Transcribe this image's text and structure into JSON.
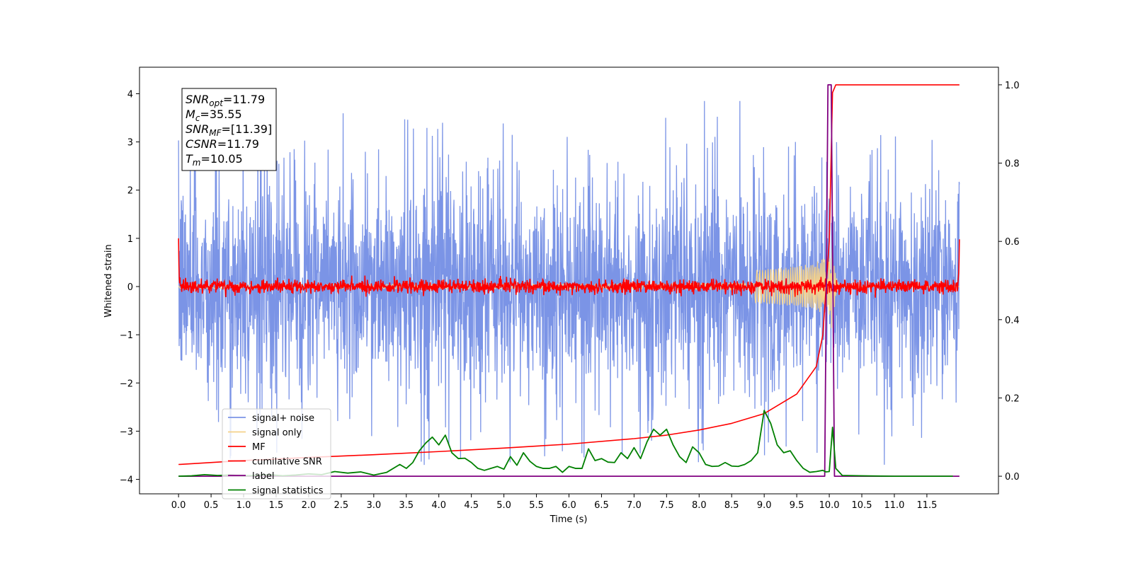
{
  "chart_data": {
    "type": "line",
    "xlabel": "Time (s)",
    "ylabel": "Whitened strain",
    "xlim": [
      -0.6,
      12.6
    ],
    "ylim": [
      -4.3,
      4.55
    ],
    "y2lim": [
      -0.045,
      1.045
    ],
    "x_ticks": [
      "0.0",
      "0.5",
      "1.0",
      "1.5",
      "2.0",
      "2.5",
      "3.0",
      "3.5",
      "4.0",
      "4.5",
      "5.0",
      "5.5",
      "6.0",
      "6.5",
      "7.0",
      "7.5",
      "8.0",
      "8.5",
      "9.0",
      "9.5",
      "10.0",
      "10.5",
      "11.0",
      "11.5"
    ],
    "y_ticks": [
      "4",
      "3",
      "2",
      "1",
      "0",
      "−1",
      "−2",
      "−3",
      "−4"
    ],
    "y2_ticks": [
      "1.0",
      "0.8",
      "0.6",
      "0.4",
      "0.2",
      "0.0"
    ],
    "grid": false,
    "legend": "lower-left",
    "annotation": [
      {
        "sym": "SNR",
        "sub": "opt",
        "val": "=11.79"
      },
      {
        "sym": "M",
        "sub": "c",
        "val": "=35.55"
      },
      {
        "sym": "SNR",
        "sub": "MF",
        "val": "=[11.39]"
      },
      {
        "sym": "CSNR",
        "sub": "",
        "val": "=11.79"
      },
      {
        "sym": "T",
        "sub": "m",
        "val": "=10.05"
      }
    ],
    "series": [
      {
        "name": "signal+ noise",
        "color": "#7b94e6",
        "axis": "left",
        "t_range": [
          0,
          12
        ],
        "noise_std": 1.15,
        "peak_range": [
          -3.7,
          3.85
        ]
      },
      {
        "name": "signal only",
        "color": "#f5d28a",
        "axis": "left",
        "chirp_merger_time": 10.05,
        "peak_amplitude": 1.15
      },
      {
        "name": "MF",
        "color": "#ff0000",
        "axis": "left",
        "t_range": [
          0,
          12
        ],
        "endpoints": [
          1.0,
          0.98
        ],
        "noise_std": 0.07
      },
      {
        "name": "cumilative SNR",
        "color": "#ff0000",
        "axis": "right",
        "x": [
          0,
          1,
          2,
          3,
          4,
          5,
          6,
          7,
          7.5,
          8,
          8.5,
          9,
          9.5,
          9.8,
          9.9,
          10.0,
          10.05,
          10.1,
          12
        ],
        "y": [
          0.03,
          0.04,
          0.048,
          0.055,
          0.063,
          0.072,
          0.082,
          0.096,
          0.105,
          0.118,
          0.135,
          0.16,
          0.21,
          0.28,
          0.36,
          0.6,
          0.98,
          1.0,
          1.0
        ]
      },
      {
        "name": "label",
        "color": "#800080",
        "axis": "right",
        "x": [
          0,
          9.93,
          9.98,
          10.03,
          10.08,
          12
        ],
        "y": [
          0.0,
          0.0,
          1.0,
          1.0,
          0.0,
          0.0
        ]
      },
      {
        "name": "signal statistics",
        "color": "#008000",
        "axis": "right",
        "x": [
          0.0,
          0.2,
          0.4,
          0.6,
          0.8,
          1.0,
          1.2,
          1.4,
          1.6,
          1.8,
          2.0,
          2.2,
          2.4,
          2.6,
          2.8,
          3.0,
          3.2,
          3.4,
          3.5,
          3.6,
          3.7,
          3.8,
          3.9,
          4.0,
          4.1,
          4.2,
          4.3,
          4.4,
          4.5,
          4.6,
          4.7,
          4.8,
          4.9,
          5.0,
          5.1,
          5.2,
          5.3,
          5.4,
          5.5,
          5.6,
          5.7,
          5.8,
          5.9,
          6.0,
          6.1,
          6.2,
          6.3,
          6.4,
          6.5,
          6.6,
          6.7,
          6.8,
          6.9,
          7.0,
          7.1,
          7.2,
          7.3,
          7.4,
          7.5,
          7.6,
          7.7,
          7.8,
          7.9,
          8.0,
          8.1,
          8.2,
          8.3,
          8.4,
          8.5,
          8.6,
          8.7,
          8.8,
          8.9,
          9.0,
          9.1,
          9.2,
          9.3,
          9.4,
          9.5,
          9.6,
          9.7,
          9.8,
          9.9,
          9.95,
          10.0,
          10.05,
          10.1,
          10.2,
          10.5,
          11.0,
          11.5,
          11.9
        ],
        "y": [
          0.0,
          0.001,
          0.004,
          0.002,
          0.003,
          0.001,
          0.002,
          0.004,
          0.001,
          0.003,
          0.006,
          0.004,
          0.012,
          0.008,
          0.011,
          0.003,
          0.01,
          0.03,
          0.02,
          0.035,
          0.065,
          0.085,
          0.1,
          0.08,
          0.105,
          0.06,
          0.045,
          0.046,
          0.035,
          0.02,
          0.015,
          0.02,
          0.025,
          0.018,
          0.05,
          0.028,
          0.06,
          0.038,
          0.025,
          0.02,
          0.02,
          0.025,
          0.01,
          0.025,
          0.02,
          0.02,
          0.07,
          0.04,
          0.045,
          0.036,
          0.035,
          0.06,
          0.045,
          0.073,
          0.045,
          0.088,
          0.12,
          0.105,
          0.12,
          0.08,
          0.05,
          0.035,
          0.075,
          0.06,
          0.03,
          0.025,
          0.026,
          0.035,
          0.026,
          0.025,
          0.03,
          0.04,
          0.06,
          0.168,
          0.135,
          0.08,
          0.06,
          0.065,
          0.04,
          0.02,
          0.01,
          0.012,
          0.015,
          0.011,
          0.012,
          0.125,
          0.02,
          0.002,
          0.001,
          0.0,
          0.0,
          0.0
        ]
      }
    ]
  }
}
